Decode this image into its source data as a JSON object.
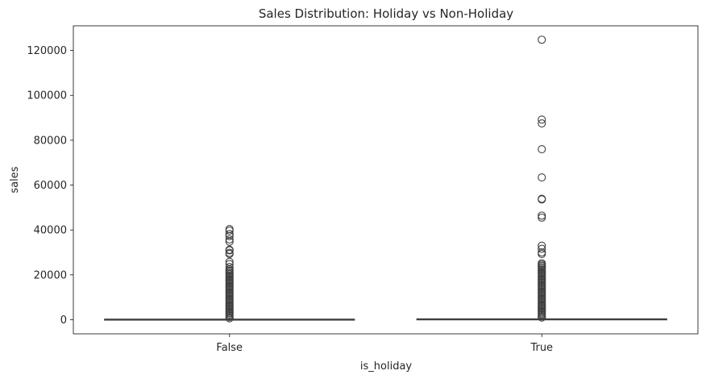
{
  "chart_data": {
    "type": "box",
    "title": "Sales Distribution: Holiday vs Non-Holiday",
    "xlabel": "is_holiday",
    "ylabel": "sales",
    "categories": [
      "False",
      "True"
    ],
    "ylim": [
      -6300,
      131000
    ],
    "yticks": [
      0,
      20000,
      40000,
      60000,
      80000,
      100000,
      120000
    ],
    "ytick_labels": [
      "0",
      "20000",
      "40000",
      "60000",
      "80000",
      "100000",
      "120000"
    ],
    "grid": false,
    "box_color": "#3f3f3f",
    "boxes": [
      {
        "category": "False",
        "q1": 0,
        "median": 40,
        "q3": 250,
        "whisker_low": 0,
        "whisker_high": 620,
        "dense_outlier_range": [
          650,
          22800
        ],
        "outliers": [
          23500,
          24800,
          25800,
          29300,
          29800,
          30900,
          31200,
          34800,
          35800,
          37300,
          38200,
          39700,
          40400
        ]
      },
      {
        "category": "True",
        "q1": 0,
        "median": 60,
        "q3": 380,
        "whisker_low": 0,
        "whisker_high": 950,
        "dense_outlier_range": [
          1000,
          25200
        ],
        "outliers": [
          29300,
          30000,
          31600,
          33000,
          45500,
          46400,
          53600,
          53900,
          63400,
          76000,
          87500,
          89200,
          124800
        ]
      }
    ]
  }
}
